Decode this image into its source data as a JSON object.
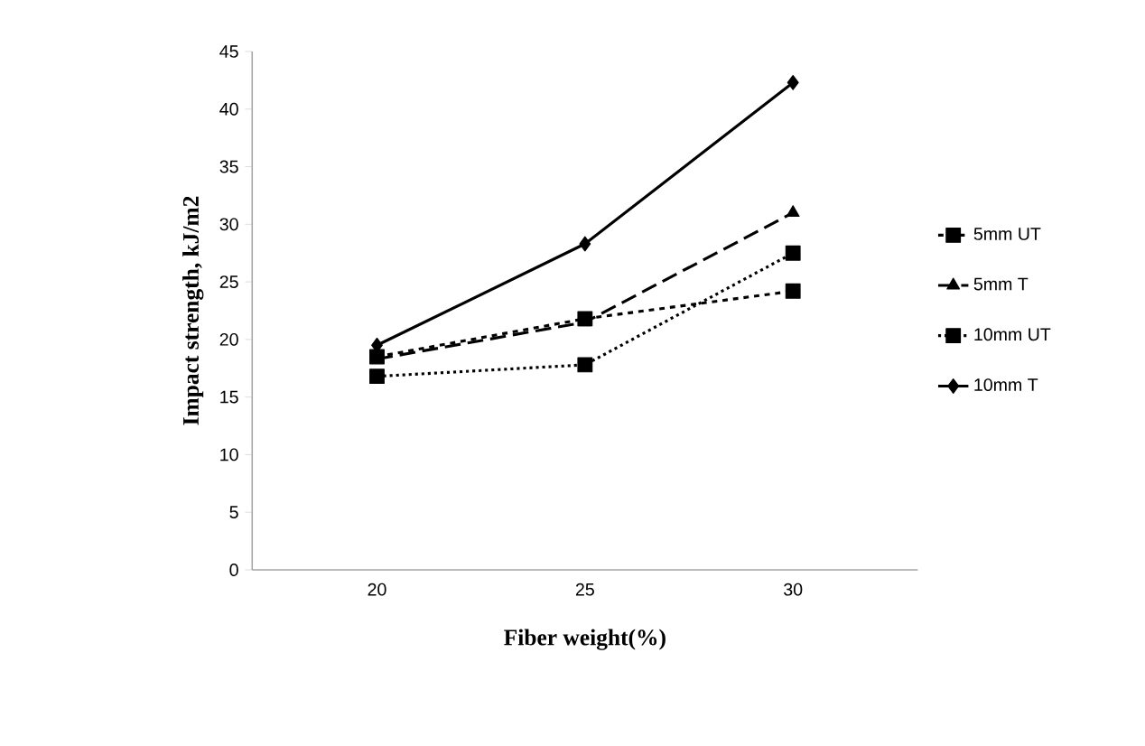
{
  "chart_data": {
    "type": "line",
    "xlabel": "Fiber weight(%)",
    "ylabel": "Impact strength, kJ/m2",
    "categories": [
      "20",
      "25",
      "30"
    ],
    "ylim": [
      0,
      45
    ],
    "yticks": [
      0,
      5,
      10,
      15,
      20,
      25,
      30,
      35,
      40,
      45
    ],
    "grid": false,
    "legend": "right",
    "series": [
      {
        "name": "5mm UT",
        "color": "#000000",
        "marker": "square",
        "line_style": "dashed",
        "values": [
          18.5,
          21.8,
          24.2
        ]
      },
      {
        "name": "5mm T",
        "color": "#000000",
        "marker": "triangle",
        "line_style": "long dashed",
        "values": [
          18.3,
          21.5,
          31
        ]
      },
      {
        "name": "10mm UT",
        "color": "#000000",
        "marker": "square",
        "line_style": "dotted",
        "values": [
          16.8,
          17.8,
          27.5
        ]
      },
      {
        "name": "10mm T",
        "color": "#000000",
        "marker": "diamond",
        "line_style": "solid",
        "values": [
          19.5,
          28.3,
          42.3
        ]
      }
    ]
  }
}
